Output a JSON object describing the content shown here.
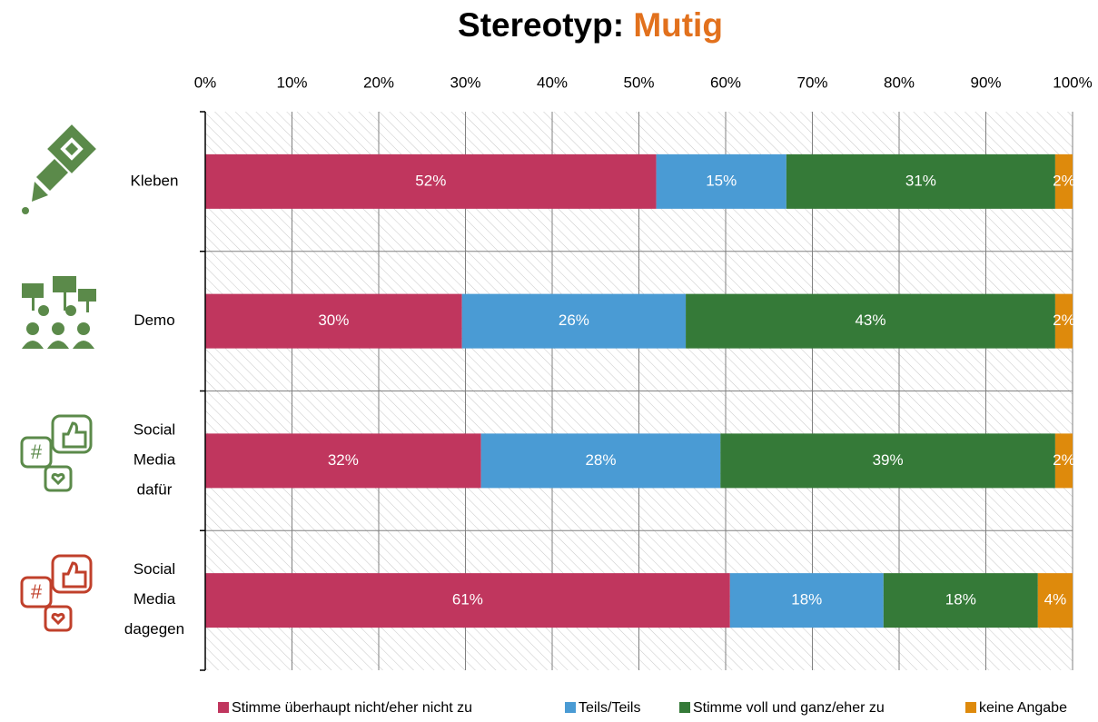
{
  "chart_data": {
    "type": "stacked-bar-horizontal",
    "title": "Stereotyp:",
    "title_accent": "Mutig",
    "categories": [
      "Kleben",
      "Demo",
      "Social Media dafür",
      "Social Media dagegen"
    ],
    "xlim": [
      0,
      100
    ],
    "xticks": [
      {
        "value": 0,
        "label": "0%"
      },
      {
        "value": 10,
        "label": "10%"
      },
      {
        "value": 20,
        "label": "20%"
      },
      {
        "value": 30,
        "label": "30%"
      },
      {
        "value": 40,
        "label": "40%"
      },
      {
        "value": 50,
        "label": "50%"
      },
      {
        "value": 60,
        "label": "60%"
      },
      {
        "value": 70,
        "label": "70%"
      },
      {
        "value": 80,
        "label": "80%"
      },
      {
        "value": 90,
        "label": "90%"
      },
      {
        "value": 100,
        "label": "100%"
      }
    ],
    "grid": true,
    "legend": "bottom",
    "series": [
      {
        "name": "Stimme überhaupt nicht/eher nicht zu",
        "color": "#c0365e",
        "values": [
          52,
          29.6,
          31.8,
          60.5
        ],
        "value_labels": [
          "52%",
          "30%",
          "32%",
          "61%"
        ]
      },
      {
        "name": "Teils/Teils",
        "color": "#4a9bd4",
        "values": [
          15,
          25.8,
          27.6,
          17.7
        ],
        "value_labels": [
          "15%",
          "26%",
          "28%",
          "18%"
        ]
      },
      {
        "name": "Stimme voll und ganz/eher zu",
        "color": "#357a38",
        "values": [
          31,
          42.6,
          38.6,
          17.8
        ],
        "value_labels": [
          "31%",
          "43%",
          "39%",
          "18%"
        ]
      },
      {
        "name": "keine Angabe",
        "color": "#de8a0c",
        "values": [
          2,
          2,
          2,
          4
        ],
        "value_labels": [
          "2%",
          "2%",
          "2%",
          "4%"
        ]
      }
    ]
  }
}
